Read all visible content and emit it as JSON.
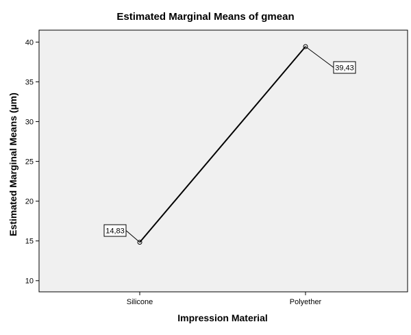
{
  "chart_data": {
    "type": "line",
    "title": "Estimated Marginal Means of gmean",
    "xlabel": "Impression Material",
    "ylabel": "Estimated Marginal Means (µm)",
    "categories": [
      "Silicone",
      "Polyether"
    ],
    "series": [
      {
        "values": [
          14.83,
          39.43
        ],
        "labels": [
          "14,83",
          "39,43"
        ]
      }
    ],
    "ylim": [
      8.6,
      41.5
    ],
    "yticks": [
      10,
      15,
      20,
      25,
      30,
      35,
      40
    ],
    "grid": false,
    "legend": "none",
    "colors": {
      "plot_background": "#f0f0f0",
      "line": "#000000",
      "axis": "#000000"
    }
  }
}
